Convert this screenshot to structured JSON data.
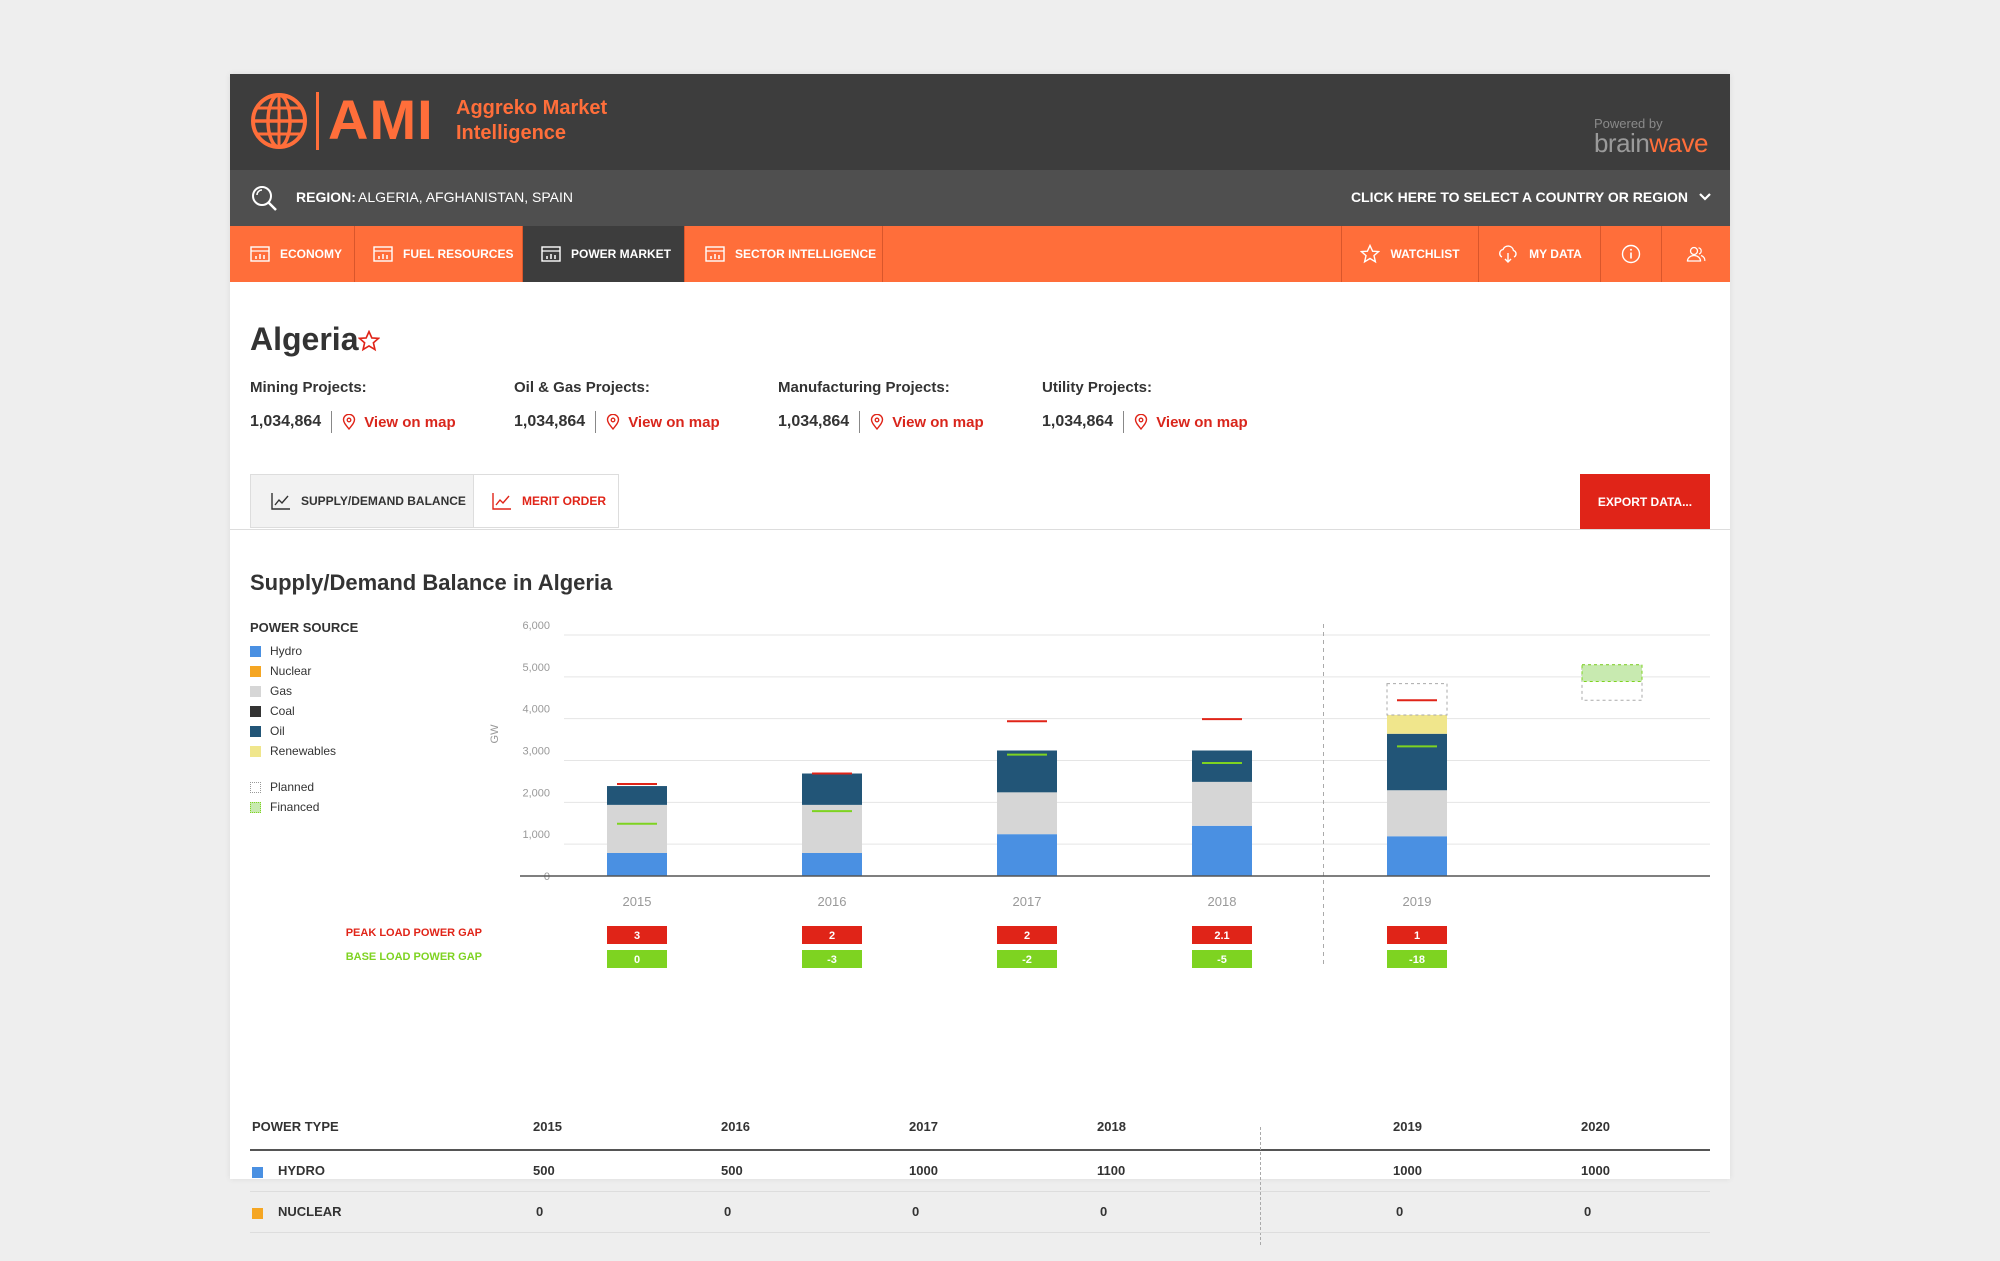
{
  "brand": {
    "name": "AMI",
    "subtitle_line1": "Aggreko Market",
    "subtitle_line2": "Intelligence",
    "powered_by": "Powered by",
    "partner_a": "brain",
    "partner_b": "wave",
    "accent": "#ff6e3a"
  },
  "region_bar": {
    "label": "REGION:",
    "value": "ALGERIA, AFGHANISTAN, SPAIN",
    "select_text": "CLICK HERE TO SELECT A COUNTRY OR REGION"
  },
  "nav": {
    "tabs": [
      {
        "label": "ECONOMY",
        "icon": "chart-icon",
        "active": false
      },
      {
        "label": "FUEL RESOURCES",
        "icon": "chart-icon",
        "active": false
      },
      {
        "label": "POWER MARKET",
        "icon": "chart-icon",
        "active": true
      },
      {
        "label": "SECTOR INTELLIGENCE",
        "icon": "chart-icon",
        "active": false
      }
    ],
    "right": {
      "watchlist": "WATCHLIST",
      "my_data": "MY DATA"
    }
  },
  "country": {
    "name": "Algeria"
  },
  "projects": [
    {
      "label": "Mining Projects:",
      "value": "1,034,864",
      "link": "View on map"
    },
    {
      "label": "Oil & Gas Projects:",
      "value": "1,034,864",
      "link": "View on map"
    },
    {
      "label": "Manufacturing Projects:",
      "value": "1,034,864",
      "link": "View on map"
    },
    {
      "label": "Utility Projects:",
      "value": "1,034,864",
      "link": "View on map"
    }
  ],
  "view_tabs": {
    "supply_demand": "SUPPLY/DEMAND BALANCE",
    "merit_order": "MERIT ORDER",
    "export": "EXPORT DATA..."
  },
  "chart_data": {
    "type": "bar",
    "title": "Supply/Demand Balance in Algeria",
    "ylabel": "GW",
    "ylim": [
      0,
      6000
    ],
    "yticks": [
      "0",
      "1,000",
      "2,000",
      "3,000",
      "4,000",
      "5,000",
      "6,000"
    ],
    "categories": [
      "2015",
      "2016",
      "2017",
      "2018",
      "2019"
    ],
    "stacked": true,
    "legend_title": "POWER SOURCE",
    "legend": [
      {
        "name": "Hydro",
        "color": "#4a90e2"
      },
      {
        "name": "Nuclear",
        "color": "#f5a623"
      },
      {
        "name": "Gas",
        "color": "#d6d6d6"
      },
      {
        "name": "Coal",
        "color": "#333333"
      },
      {
        "name": "Oil",
        "color": "#225577"
      },
      {
        "name": "Renewables",
        "color": "#f0e68c"
      }
    ],
    "legend_status": [
      {
        "name": "Planned",
        "style": "dotted"
      },
      {
        "name": "Financed",
        "style": "green-dotted"
      }
    ],
    "series": [
      {
        "name": "Hydro",
        "color": "#4a90e2",
        "values": [
          550,
          550,
          1000,
          1200,
          950
        ]
      },
      {
        "name": "Gas",
        "color": "#d6d6d6",
        "values": [
          1150,
          1150,
          1000,
          1050,
          1100
        ]
      },
      {
        "name": "Oil",
        "color": "#225577",
        "values": [
          450,
          750,
          1000,
          750,
          1350
        ]
      },
      {
        "name": "Renewables",
        "color": "#f0e68c",
        "values": [
          0,
          0,
          0,
          0,
          450
        ]
      }
    ],
    "peak_load": [
      2200,
      2450,
      3700,
      3750,
      4200
    ],
    "base_load": [
      1250,
      1550,
      2900,
      2700,
      3100
    ],
    "planned": {
      "category": "2019",
      "top": 4600
    },
    "financed": {
      "position": "after-2019",
      "low": 4200,
      "high": 5050,
      "band_low": 4650
    },
    "forecast_divider_after": "2018",
    "peak_gap_label": "PEAK LOAD POWER GAP",
    "base_gap_label": "BASE LOAD POWER GAP",
    "peak_gap": [
      "3",
      "2",
      "2",
      "2.1",
      "1"
    ],
    "base_gap": [
      "0",
      "-3",
      "-2",
      "-5",
      "-18"
    ],
    "peak_color": "#e02418",
    "base_color": "#7ed321"
  },
  "table": {
    "header": [
      "POWER TYPE",
      "2015",
      "2016",
      "2017",
      "2018",
      "2019",
      "2020"
    ],
    "rows": [
      {
        "type": "HYDRO",
        "color": "#4a90e2",
        "values": [
          "500",
          "500",
          "1000",
          "1100",
          "1000",
          "1000"
        ]
      },
      {
        "type": "NUCLEAR",
        "color": "#f5a623",
        "values": [
          "0",
          "0",
          "0",
          "0",
          "0",
          "0"
        ]
      }
    ]
  }
}
